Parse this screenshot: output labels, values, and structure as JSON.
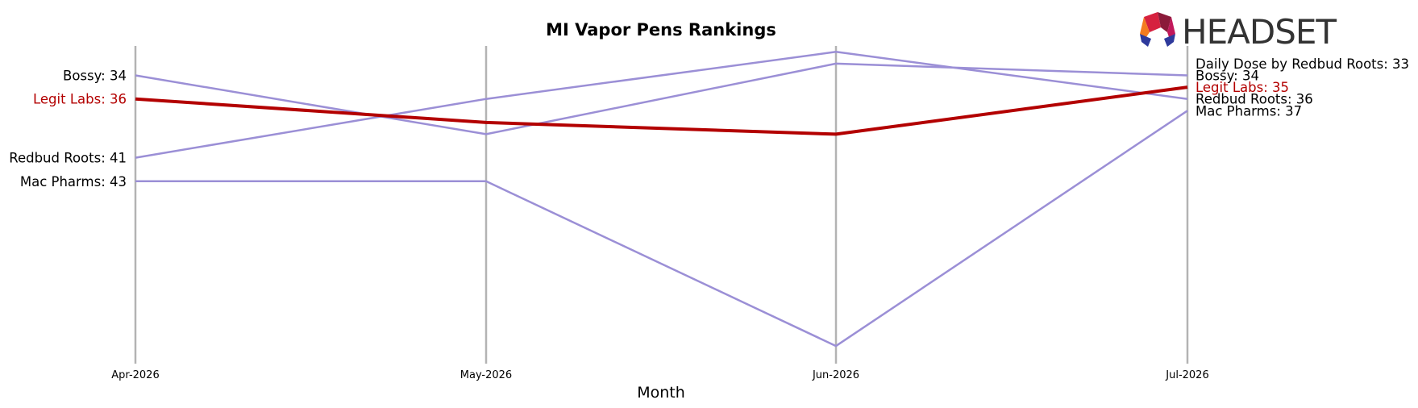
{
  "chart_data": {
    "type": "line",
    "title": "MI Vapor Pens Rankings",
    "xlabel": "Month",
    "ylabel": "",
    "categories": [
      "Apr-2026",
      "May-2026",
      "Jun-2026",
      "Jul-2026"
    ],
    "y_inverted": true,
    "ylim": [
      31.5,
      58.5
    ],
    "grid": "vertical",
    "highlight_color": "#b30000",
    "series_color": "#9b8fd6",
    "series": [
      {
        "name": "Bossy",
        "values": [
          34,
          39,
          33,
          34
        ],
        "highlight": false
      },
      {
        "name": "Redbud Roots",
        "values": [
          41,
          36,
          32,
          36
        ],
        "highlight": false
      },
      {
        "name": "Mac Pharms",
        "values": [
          43,
          43,
          57,
          37
        ],
        "highlight": false
      },
      {
        "name": "Legit Labs",
        "values": [
          36,
          38,
          39,
          35
        ],
        "highlight": true
      },
      {
        "name": "Daily Dose by Redbud Roots",
        "values": [
          null,
          null,
          null,
          33
        ],
        "highlight": false
      }
    ],
    "left_labels": [
      {
        "text": "Bossy: 34",
        "value": 34,
        "highlight": false
      },
      {
        "text": "Legit Labs: 36",
        "value": 36,
        "highlight": true
      },
      {
        "text": "Redbud Roots: 41",
        "value": 41,
        "highlight": false
      },
      {
        "text": "Mac Pharms: 43",
        "value": 43,
        "highlight": false
      }
    ],
    "right_labels": [
      {
        "text": "Daily Dose by Redbud Roots: 33",
        "value": 33,
        "highlight": false
      },
      {
        "text": "Bossy: 34",
        "value": 34,
        "highlight": false
      },
      {
        "text": "Legit Labs: 35",
        "value": 35,
        "highlight": true
      },
      {
        "text": "Redbud Roots: 36",
        "value": 36,
        "highlight": false
      },
      {
        "text": "Mac Pharms: 37",
        "value": 37,
        "highlight": false
      }
    ]
  },
  "logo": {
    "text": "HEADSET",
    "icon": "headset-logo-icon"
  }
}
